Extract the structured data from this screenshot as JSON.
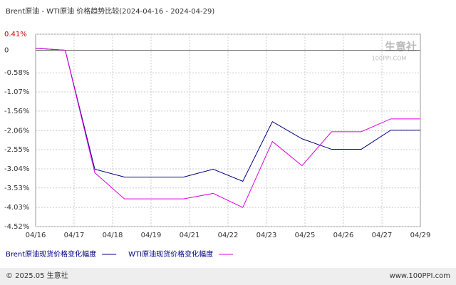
{
  "chart_data": {
    "type": "line",
    "title": "Brent原油 - WTI原油 价格趋势比较(2024-04-16 - 2024-04-29)",
    "xticks": [
      "04/16",
      "04/17",
      "04/18",
      "04/19",
      "04/21",
      "04/22",
      "04/23",
      "04/25",
      "04/26",
      "04/27",
      "04/29"
    ],
    "ylim": [
      -4.52,
      0.41
    ],
    "yticks": [
      {
        "value": 0.41,
        "label": "0.41%"
      },
      0,
      {
        "value": -0.58,
        "label": "-0.58%"
      },
      {
        "value": -1.07,
        "label": "-1.07%"
      },
      {
        "value": -1.56,
        "label": "-1.56%"
      },
      {
        "value": -2.06,
        "label": "-2.06%"
      },
      {
        "value": -2.55,
        "label": "-2.55%"
      },
      {
        "value": -3.04,
        "label": "-3.04%"
      },
      {
        "value": -3.53,
        "label": "-3.53%"
      },
      {
        "value": -4.03,
        "label": "-4.03%"
      },
      {
        "value": -4.52,
        "label": "-4.52%"
      }
    ],
    "grid": true,
    "series": [
      {
        "name": "Brent原油现货价格变化幅度",
        "color": "#000080",
        "values": [
          0.05,
          0,
          -3.05,
          -3.25,
          -3.25,
          -3.25,
          -3.05,
          -3.36,
          -1.83,
          -2.27,
          -2.54,
          -2.54,
          -2.05,
          -2.05
        ]
      },
      {
        "name": "WTI原油现货价格变化幅度",
        "color": "#e000e0",
        "values": [
          0.05,
          0,
          -3.14,
          -3.81,
          -3.81,
          -3.81,
          -3.67,
          -4.03,
          -2.34,
          -2.96,
          -2.09,
          -2.09,
          -1.76,
          -1.76
        ]
      }
    ],
    "watermark": {
      "name": "生意社",
      "site": "100PPI.COM"
    },
    "footer": {
      "left": "© 2025.05 生意社",
      "right": "www.100PPI.com"
    }
  }
}
